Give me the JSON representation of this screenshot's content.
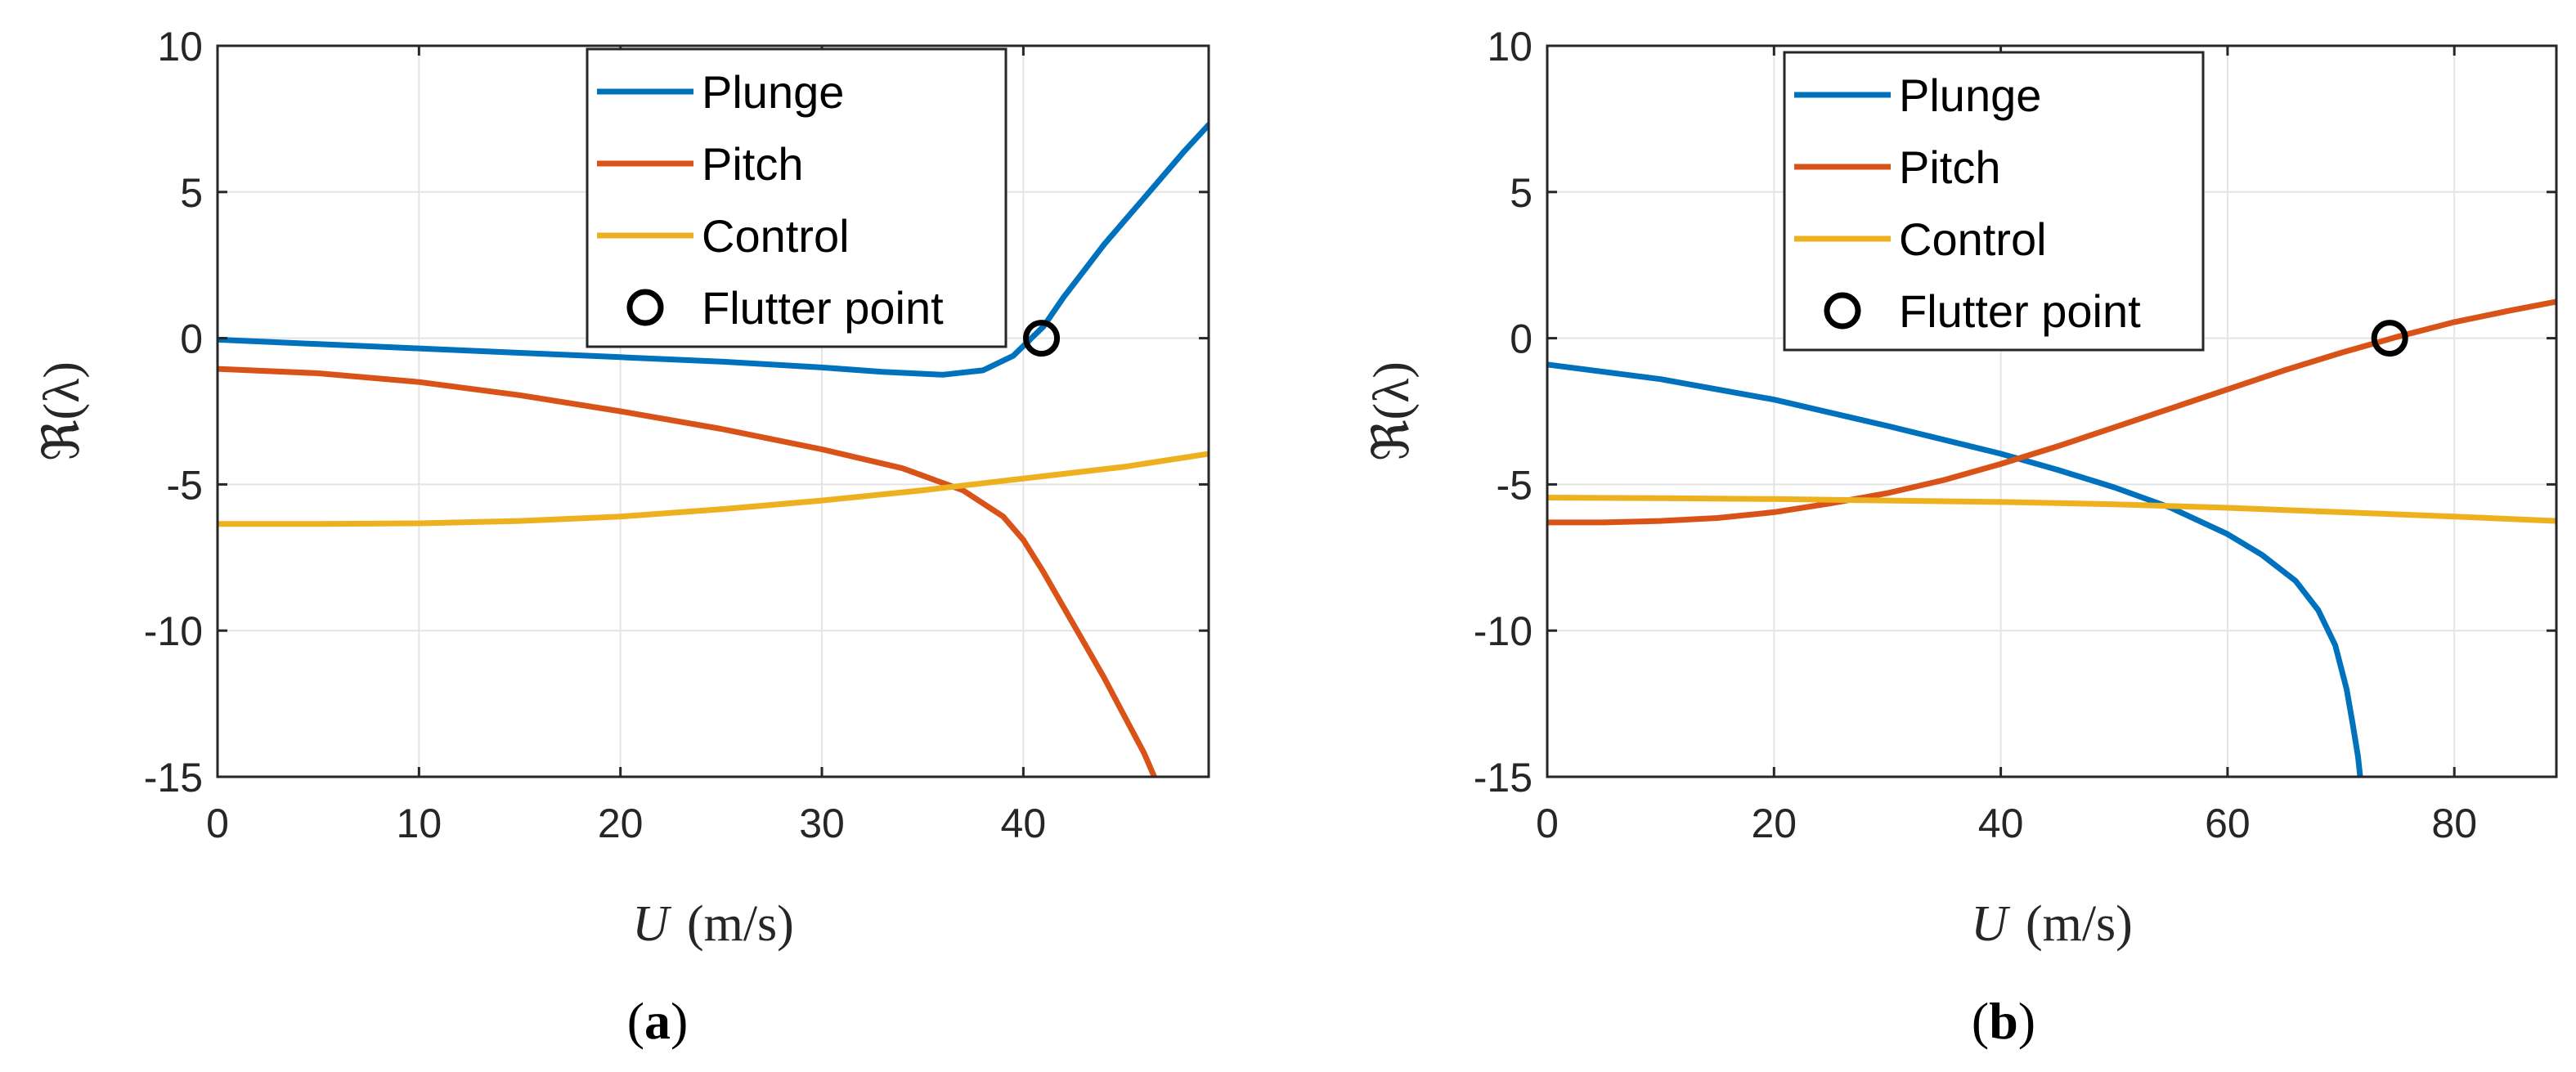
{
  "chart_data": [
    {
      "type": "line",
      "panel": "a",
      "caption": {
        "open": "(",
        "letter": "a",
        "close": ")"
      },
      "xlabel": {
        "var": "U",
        "unit": "(m/s)"
      },
      "ylabel": "ℜ(λ)",
      "xlim": [
        0,
        49.2
      ],
      "ylim": [
        -15,
        10
      ],
      "xticks": [
        0,
        10,
        20,
        30,
        40
      ],
      "yticks": [
        10,
        5,
        0,
        -5,
        -10,
        -15
      ],
      "grid": true,
      "legend": {
        "placement": "top-right"
      },
      "series": [
        {
          "name": "Plunge",
          "color": "#0072BD",
          "x": [
            0,
            5,
            10,
            15,
            20,
            25,
            30,
            33,
            36,
            38,
            39.5,
            41,
            42,
            43,
            44,
            45,
            46,
            47,
            48,
            49.2
          ],
          "y": [
            -0.05,
            -0.2,
            -0.35,
            -0.5,
            -0.65,
            -0.8,
            -1.0,
            -1.15,
            -1.25,
            -1.1,
            -0.6,
            0.4,
            1.4,
            2.3,
            3.2,
            4.0,
            4.8,
            5.6,
            6.4,
            7.3
          ]
        },
        {
          "name": "Pitch",
          "color": "#D95319",
          "x": [
            0,
            5,
            10,
            15,
            20,
            25,
            30,
            34,
            37,
            39,
            40,
            41,
            42,
            43,
            44,
            45,
            46,
            46.5
          ],
          "y": [
            -1.05,
            -1.2,
            -1.5,
            -1.95,
            -2.5,
            -3.1,
            -3.8,
            -4.45,
            -5.2,
            -6.1,
            -6.9,
            -8.0,
            -9.2,
            -10.4,
            -11.6,
            -12.9,
            -14.2,
            -15
          ]
        },
        {
          "name": "Control",
          "color": "#EDB120",
          "x": [
            0,
            5,
            10,
            15,
            20,
            25,
            30,
            35,
            40,
            45,
            49.2
          ],
          "y": [
            -6.35,
            -6.35,
            -6.33,
            -6.25,
            -6.1,
            -5.85,
            -5.55,
            -5.2,
            -4.8,
            -4.4,
            -3.95
          ]
        }
      ],
      "markers": [
        {
          "name": "Flutter point",
          "x": 40.9,
          "y": 0
        }
      ]
    },
    {
      "type": "line",
      "panel": "b",
      "caption": {
        "open": "(",
        "letter": "b",
        "close": ")"
      },
      "xlabel": {
        "var": "U",
        "unit": "(m/s)"
      },
      "ylabel": "ℜ(λ)",
      "xlim": [
        0,
        89
      ],
      "ylim": [
        -15,
        10
      ],
      "xticks": [
        0,
        20,
        40,
        60,
        80
      ],
      "yticks": [
        10,
        5,
        0,
        -5,
        -10,
        -15
      ],
      "grid": true,
      "legend": {
        "placement": "top-left"
      },
      "series": [
        {
          "name": "Plunge",
          "color": "#0072BD",
          "x": [
            0,
            10,
            20,
            30,
            40,
            45,
            50,
            55,
            60,
            63,
            66,
            68,
            69.5,
            70.5,
            71,
            71.5,
            71.7
          ],
          "y": [
            -0.9,
            -1.4,
            -2.1,
            -3.0,
            -3.95,
            -4.5,
            -5.1,
            -5.8,
            -6.7,
            -7.4,
            -8.3,
            -9.3,
            -10.5,
            -12,
            -13.1,
            -14.3,
            -15
          ]
        },
        {
          "name": "Pitch",
          "color": "#D95319",
          "x": [
            0,
            5,
            10,
            15,
            20,
            25,
            30,
            35,
            40,
            45,
            50,
            55,
            60,
            65,
            70,
            75,
            80,
            85,
            89
          ],
          "y": [
            -6.3,
            -6.3,
            -6.25,
            -6.15,
            -5.95,
            -5.65,
            -5.3,
            -4.85,
            -4.3,
            -3.7,
            -3.05,
            -2.4,
            -1.75,
            -1.1,
            -0.5,
            0.05,
            0.55,
            0.95,
            1.25
          ]
        },
        {
          "name": "Control",
          "color": "#EDB120",
          "x": [
            0,
            10,
            20,
            30,
            40,
            50,
            60,
            70,
            80,
            89
          ],
          "y": [
            -5.45,
            -5.47,
            -5.5,
            -5.55,
            -5.6,
            -5.68,
            -5.8,
            -5.95,
            -6.1,
            -6.25
          ]
        }
      ],
      "markers": [
        {
          "name": "Flutter point",
          "x": 74.3,
          "y": 0
        }
      ]
    }
  ]
}
